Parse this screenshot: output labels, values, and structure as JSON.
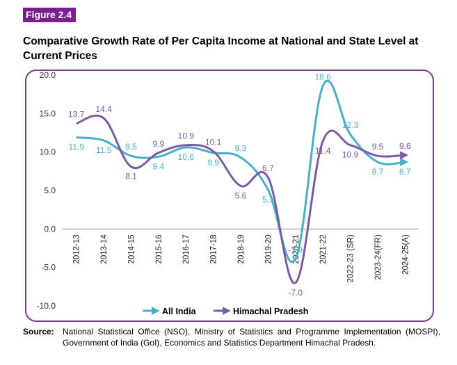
{
  "figure_label": "Figure 2.4",
  "title": "Comparative Growth Rate of Per Capita Income at National and State Level at Current Prices",
  "source": {
    "label": "Source:",
    "text": "National Statistical Office (NSO), Ministry of Statistics and Programme Implementation (MOSPI), Government of India (GoI), Economics and Statistics Department Himachal Pradesh."
  },
  "colors": {
    "badge": "#7a1f8e",
    "frame": "#7a3d97",
    "all_india": "#4aaec8",
    "himachal": "#7b5aa6"
  },
  "chart_data": {
    "type": "line",
    "categories": [
      "2012-13",
      "2013-14",
      "2014-15",
      "2015-16",
      "2016-17",
      "2017-18",
      "2018-19",
      "2019-20",
      "2020-21",
      "2021-22",
      "2022-23 (SR)",
      "2023-24(FR)",
      "2024-25(A)"
    ],
    "series": [
      {
        "name": "All India",
        "color": "#4aaec8",
        "values": [
          11.9,
          11.5,
          9.5,
          9.4,
          10.6,
          9.9,
          9.3,
          5.1,
          -3.9,
          18.6,
          12.3,
          8.7,
          8.7
        ],
        "labels": [
          "11.9",
          "11.5",
          "9.5",
          "9.4",
          "10.6",
          "9.9",
          "9.3",
          "5.1",
          "-3.9",
          "18.6",
          "12.3",
          "8.7",
          "8.7"
        ]
      },
      {
        "name": "Himachal Pradesh",
        "color": "#7b5aa6",
        "values": [
          13.7,
          14.4,
          8.1,
          9.9,
          10.9,
          10.1,
          5.6,
          6.7,
          -7.0,
          11.4,
          10.9,
          9.5,
          9.6
        ],
        "labels": [
          "13.7",
          "14.4",
          "8.1",
          "9.9",
          "10.9",
          "10.1",
          "5.6",
          "6.7",
          "-7.0",
          "11.4",
          "10.9",
          "9.5",
          "9.6"
        ]
      }
    ],
    "yticks": [
      "20.0",
      "15.0",
      "10.0",
      "5.0",
      "0.0",
      "-5.0",
      "-10.0"
    ],
    "ylim": [
      -10,
      20
    ],
    "legend": "bottom",
    "grid": false
  }
}
